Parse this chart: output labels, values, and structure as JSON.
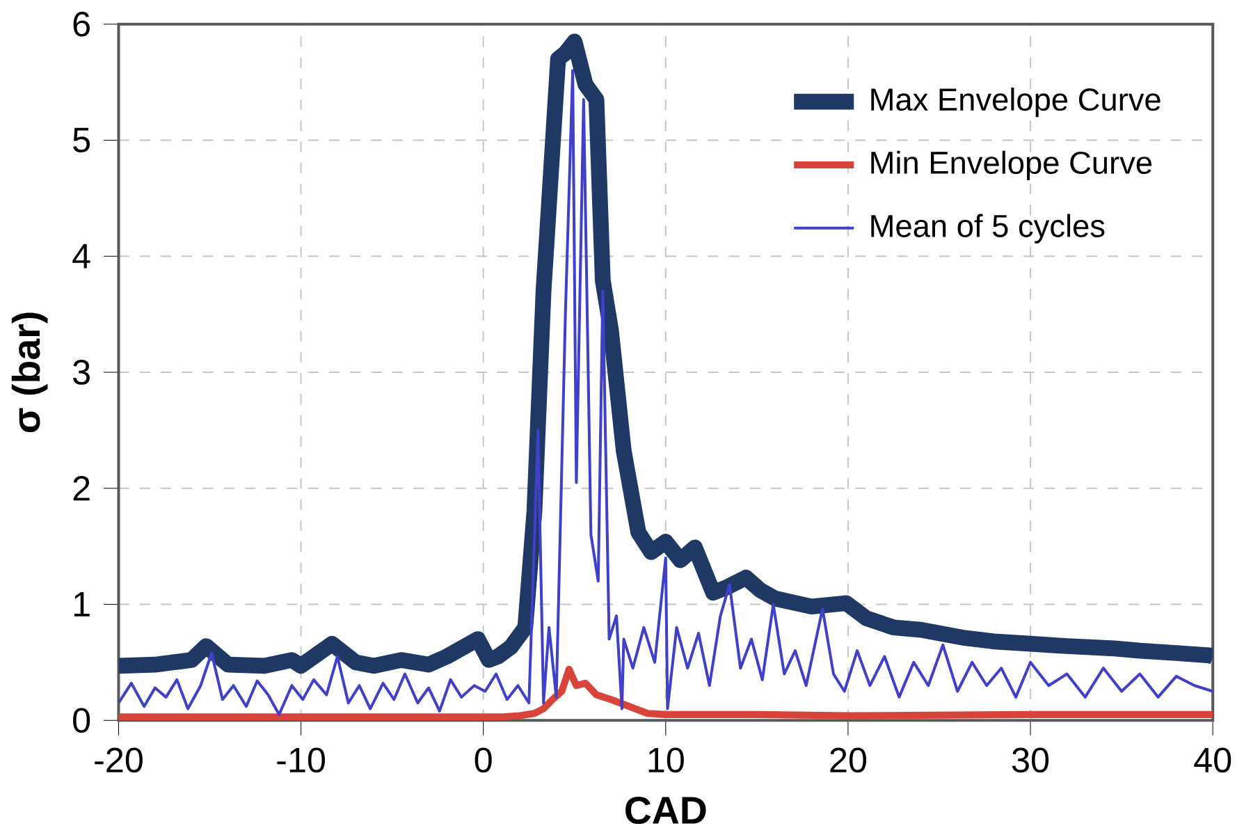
{
  "chart_data": {
    "type": "line",
    "xlabel": "CAD",
    "ylabel": "σ (bar)",
    "xlim": [
      -20,
      40
    ],
    "ylim": [
      0,
      6
    ],
    "xticks": [
      -20,
      -10,
      0,
      10,
      20,
      30,
      40
    ],
    "yticks": [
      0,
      1,
      2,
      3,
      4,
      5,
      6
    ],
    "grid": true,
    "legend": "top right",
    "line_style": "solid",
    "marker": "none",
    "series": [
      {
        "name": "Max Envelope Curve",
        "color": "#1f3864",
        "x": [
          -20,
          -18,
          -17,
          -16,
          -15.2,
          -14,
          -12,
          -10.5,
          -10,
          -8.3,
          -7,
          -6,
          -4.5,
          -3,
          -2,
          -0.3,
          0.3,
          0.8,
          1.5,
          2.3,
          2.8,
          3.3,
          4.1,
          4.5,
          5.0,
          5.6,
          6.2,
          6.55,
          7.0,
          7.7,
          8.5,
          9.2,
          10.0,
          10.8,
          11.6,
          12.6,
          13.4,
          14.4,
          15.2,
          16,
          18,
          19.9,
          21,
          22.5,
          24,
          26.4,
          28,
          30,
          32,
          34.6,
          36,
          38,
          39.8,
          40
        ],
        "values": [
          0.47,
          0.48,
          0.5,
          0.52,
          0.64,
          0.48,
          0.47,
          0.52,
          0.47,
          0.66,
          0.5,
          0.47,
          0.52,
          0.48,
          0.55,
          0.7,
          0.52,
          0.55,
          0.63,
          0.8,
          1.8,
          3.7,
          5.7,
          5.75,
          5.85,
          5.48,
          5.35,
          3.79,
          3.36,
          2.32,
          1.62,
          1.45,
          1.54,
          1.38,
          1.49,
          1.1,
          1.15,
          1.23,
          1.12,
          1.05,
          0.98,
          1.01,
          0.88,
          0.8,
          0.78,
          0.71,
          0.68,
          0.66,
          0.64,
          0.62,
          0.6,
          0.58,
          0.56,
          0.55
        ]
      },
      {
        "name": "Min Envelope Curve",
        "color": "#d9443a",
        "x": [
          -20,
          -10,
          0,
          1,
          2,
          2.8,
          3.3,
          3.8,
          4.3,
          4.7,
          5.1,
          5.6,
          6.2,
          7,
          8,
          9,
          10,
          15,
          20,
          30,
          40
        ],
        "values": [
          0.03,
          0.03,
          0.03,
          0.03,
          0.04,
          0.06,
          0.1,
          0.18,
          0.25,
          0.44,
          0.3,
          0.32,
          0.22,
          0.18,
          0.12,
          0.06,
          0.05,
          0.05,
          0.04,
          0.05,
          0.05
        ]
      },
      {
        "name": "Mean of 5 cycles",
        "color": "#4040c8",
        "x": [
          -20,
          -19.3,
          -18.6,
          -18,
          -17.4,
          -16.8,
          -16.2,
          -15.5,
          -14.9,
          -14.3,
          -13.7,
          -13,
          -12.4,
          -11.8,
          -11.2,
          -10.5,
          -9.9,
          -9.3,
          -8.6,
          -8,
          -7.4,
          -6.8,
          -6.2,
          -5.5,
          -4.9,
          -4.3,
          -3.6,
          -3,
          -2.4,
          -1.8,
          -1.2,
          -0.5,
          0.1,
          0.7,
          1.3,
          1.9,
          2.5,
          3.0,
          3.3,
          3.6,
          4.0,
          4.5,
          4.9,
          5.1,
          5.5,
          5.9,
          6.3,
          6.55,
          6.9,
          7.3,
          7.6,
          7.7,
          8.2,
          8.8,
          9.4,
          10.0,
          10.1,
          10.6,
          11.2,
          11.8,
          12.4,
          13,
          13.5,
          14.1,
          14.7,
          15.3,
          15.9,
          16.5,
          17.1,
          17.7,
          18.6,
          19.2,
          19.8,
          20.5,
          21.2,
          22,
          22.8,
          23.6,
          24.4,
          25.2,
          26,
          26.8,
          27.6,
          28.4,
          29.2,
          30,
          31,
          32,
          33,
          34,
          35,
          36,
          37,
          38,
          39,
          40
        ],
        "values": [
          0.15,
          0.32,
          0.12,
          0.28,
          0.2,
          0.35,
          0.1,
          0.3,
          0.58,
          0.18,
          0.3,
          0.12,
          0.34,
          0.22,
          0.05,
          0.3,
          0.18,
          0.35,
          0.22,
          0.55,
          0.15,
          0.3,
          0.1,
          0.32,
          0.18,
          0.4,
          0.15,
          0.28,
          0.08,
          0.35,
          0.2,
          0.3,
          0.25,
          0.4,
          0.18,
          0.3,
          0.15,
          2.5,
          0.15,
          0.8,
          0.2,
          3.5,
          5.6,
          2.05,
          5.35,
          1.6,
          1.2,
          3.7,
          0.7,
          0.9,
          0.1,
          0.7,
          0.45,
          0.8,
          0.5,
          1.4,
          0.1,
          0.8,
          0.45,
          0.75,
          0.3,
          0.9,
          1.17,
          0.45,
          0.7,
          0.35,
          1.0,
          0.4,
          0.6,
          0.3,
          0.96,
          0.4,
          0.25,
          0.6,
          0.3,
          0.55,
          0.2,
          0.5,
          0.3,
          0.65,
          0.25,
          0.5,
          0.3,
          0.45,
          0.2,
          0.5,
          0.3,
          0.4,
          0.2,
          0.45,
          0.25,
          0.4,
          0.2,
          0.38,
          0.3,
          0.25
        ]
      }
    ]
  }
}
